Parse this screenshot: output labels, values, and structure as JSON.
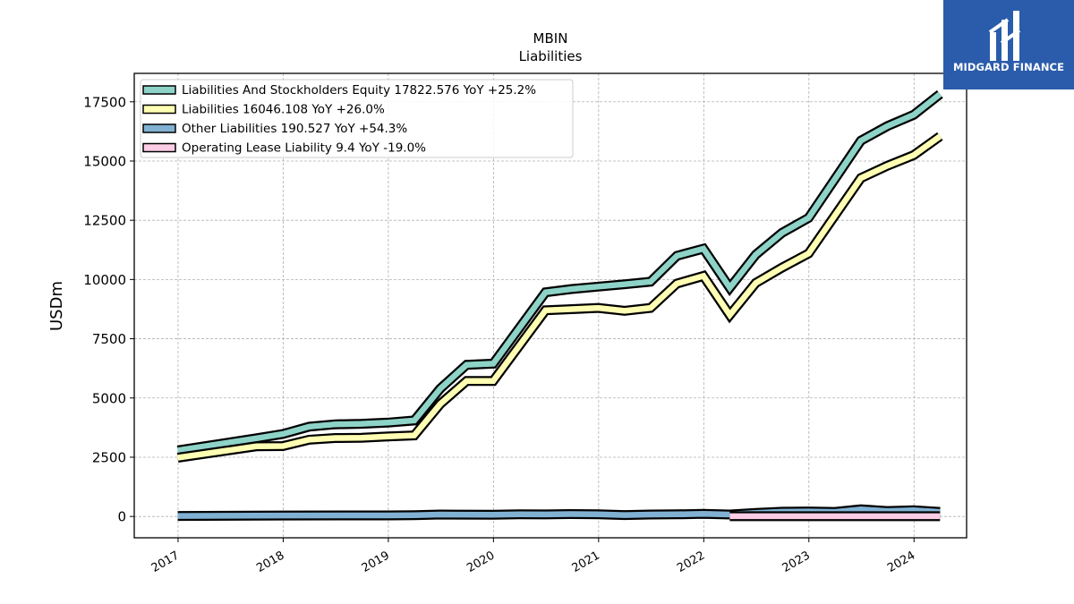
{
  "chart_data": {
    "type": "line",
    "title": "MBIN",
    "subtitle": "Liabilities",
    "xlabel": "",
    "ylabel": "USDm",
    "xlim": [
      "2016-08-01",
      "2024-07-01"
    ],
    "ylim": [
      -900,
      18700
    ],
    "yticks": [
      0,
      2500,
      5000,
      7500,
      10000,
      12500,
      15000,
      17500
    ],
    "xticks": [
      "2017",
      "2018",
      "2019",
      "2020",
      "2021",
      "2022",
      "2023",
      "2024"
    ],
    "grid": true,
    "legend_position": "top-left",
    "series": [
      {
        "name": "Liabilities And Stockholders Equity",
        "legend_label": "Liabilities And Stockholders Equity  17822.576 YoY +25.2%",
        "color": "#8dd3c7",
        "points": [
          [
            "2016-12-31",
            2790
          ],
          [
            "2017-09-30",
            3300
          ],
          [
            "2017-12-31",
            3480
          ],
          [
            "2018-03-31",
            3790
          ],
          [
            "2018-06-30",
            3890
          ],
          [
            "2018-09-30",
            3910
          ],
          [
            "2018-12-31",
            3960
          ],
          [
            "2019-03-31",
            4050
          ],
          [
            "2019-06-30",
            5400
          ],
          [
            "2019-09-30",
            6400
          ],
          [
            "2019-12-31",
            6450
          ],
          [
            "2020-06-30",
            9460
          ],
          [
            "2020-09-30",
            9600
          ],
          [
            "2020-12-31",
            9700
          ],
          [
            "2021-03-31",
            9800
          ],
          [
            "2021-06-30",
            9910
          ],
          [
            "2021-09-30",
            11000
          ],
          [
            "2021-12-31",
            11300
          ],
          [
            "2022-03-31",
            9650
          ],
          [
            "2022-06-30",
            11050
          ],
          [
            "2022-09-30",
            11970
          ],
          [
            "2022-12-31",
            12600
          ],
          [
            "2023-06-30",
            15860
          ],
          [
            "2023-09-30",
            16470
          ],
          [
            "2023-12-31",
            16950
          ],
          [
            "2024-03-31",
            17823
          ]
        ]
      },
      {
        "name": "Liabilities",
        "legend_label": "Liabilities  16046.108 YoY +26.0%",
        "color": "#ffffb3",
        "points": [
          [
            "2016-12-31",
            2480
          ],
          [
            "2017-09-30",
            2960
          ],
          [
            "2017-12-31",
            2970
          ],
          [
            "2018-03-31",
            3240
          ],
          [
            "2018-06-30",
            3310
          ],
          [
            "2018-09-30",
            3320
          ],
          [
            "2018-12-31",
            3380
          ],
          [
            "2019-03-31",
            3420
          ],
          [
            "2019-06-30",
            4750
          ],
          [
            "2019-09-30",
            5720
          ],
          [
            "2019-12-31",
            5720
          ],
          [
            "2020-06-30",
            8700
          ],
          [
            "2020-09-30",
            8750
          ],
          [
            "2020-12-31",
            8800
          ],
          [
            "2021-03-31",
            8680
          ],
          [
            "2021-06-30",
            8800
          ],
          [
            "2021-09-30",
            9830
          ],
          [
            "2021-12-31",
            10150
          ],
          [
            "2022-03-31",
            8500
          ],
          [
            "2022-06-30",
            9850
          ],
          [
            "2022-09-30",
            10500
          ],
          [
            "2022-12-31",
            11100
          ],
          [
            "2023-06-30",
            14280
          ],
          [
            "2023-09-30",
            14800
          ],
          [
            "2023-12-31",
            15250
          ],
          [
            "2024-03-31",
            16046
          ]
        ]
      },
      {
        "name": "Other Liabilities",
        "legend_label": "Other Liabilities  190.527 YoY +54.3%",
        "color": "#80b1d3",
        "points": [
          [
            "2016-12-31",
            20
          ],
          [
            "2017-12-31",
            40
          ],
          [
            "2018-12-31",
            45
          ],
          [
            "2019-03-31",
            50
          ],
          [
            "2019-06-30",
            80
          ],
          [
            "2019-12-31",
            70
          ],
          [
            "2020-03-31",
            90
          ],
          [
            "2020-06-30",
            85
          ],
          [
            "2020-09-30",
            100
          ],
          [
            "2020-12-31",
            90
          ],
          [
            "2021-03-31",
            60
          ],
          [
            "2021-06-30",
            80
          ],
          [
            "2021-09-30",
            90
          ],
          [
            "2021-12-31",
            110
          ],
          [
            "2022-03-31",
            80
          ],
          [
            "2022-06-30",
            150
          ],
          [
            "2022-09-30",
            200
          ],
          [
            "2022-12-31",
            210
          ],
          [
            "2023-03-31",
            190
          ],
          [
            "2023-06-30",
            300
          ],
          [
            "2023-09-30",
            230
          ],
          [
            "2023-12-31",
            260
          ],
          [
            "2024-03-31",
            191
          ]
        ]
      },
      {
        "name": "Operating Lease Liability",
        "legend_label": "Operating Lease Liability  9.4 YoY -19.0%",
        "color": "#fccde5",
        "points": [
          [
            "2022-03-31",
            12
          ],
          [
            "2022-06-30",
            11
          ],
          [
            "2022-09-30",
            11
          ],
          [
            "2022-12-31",
            10
          ],
          [
            "2023-06-30",
            10
          ],
          [
            "2023-12-31",
            9.8
          ],
          [
            "2024-03-31",
            9.4
          ]
        ]
      }
    ]
  },
  "logo": {
    "text": "MIDGARD FINANCE",
    "background": "#2b5cab"
  }
}
